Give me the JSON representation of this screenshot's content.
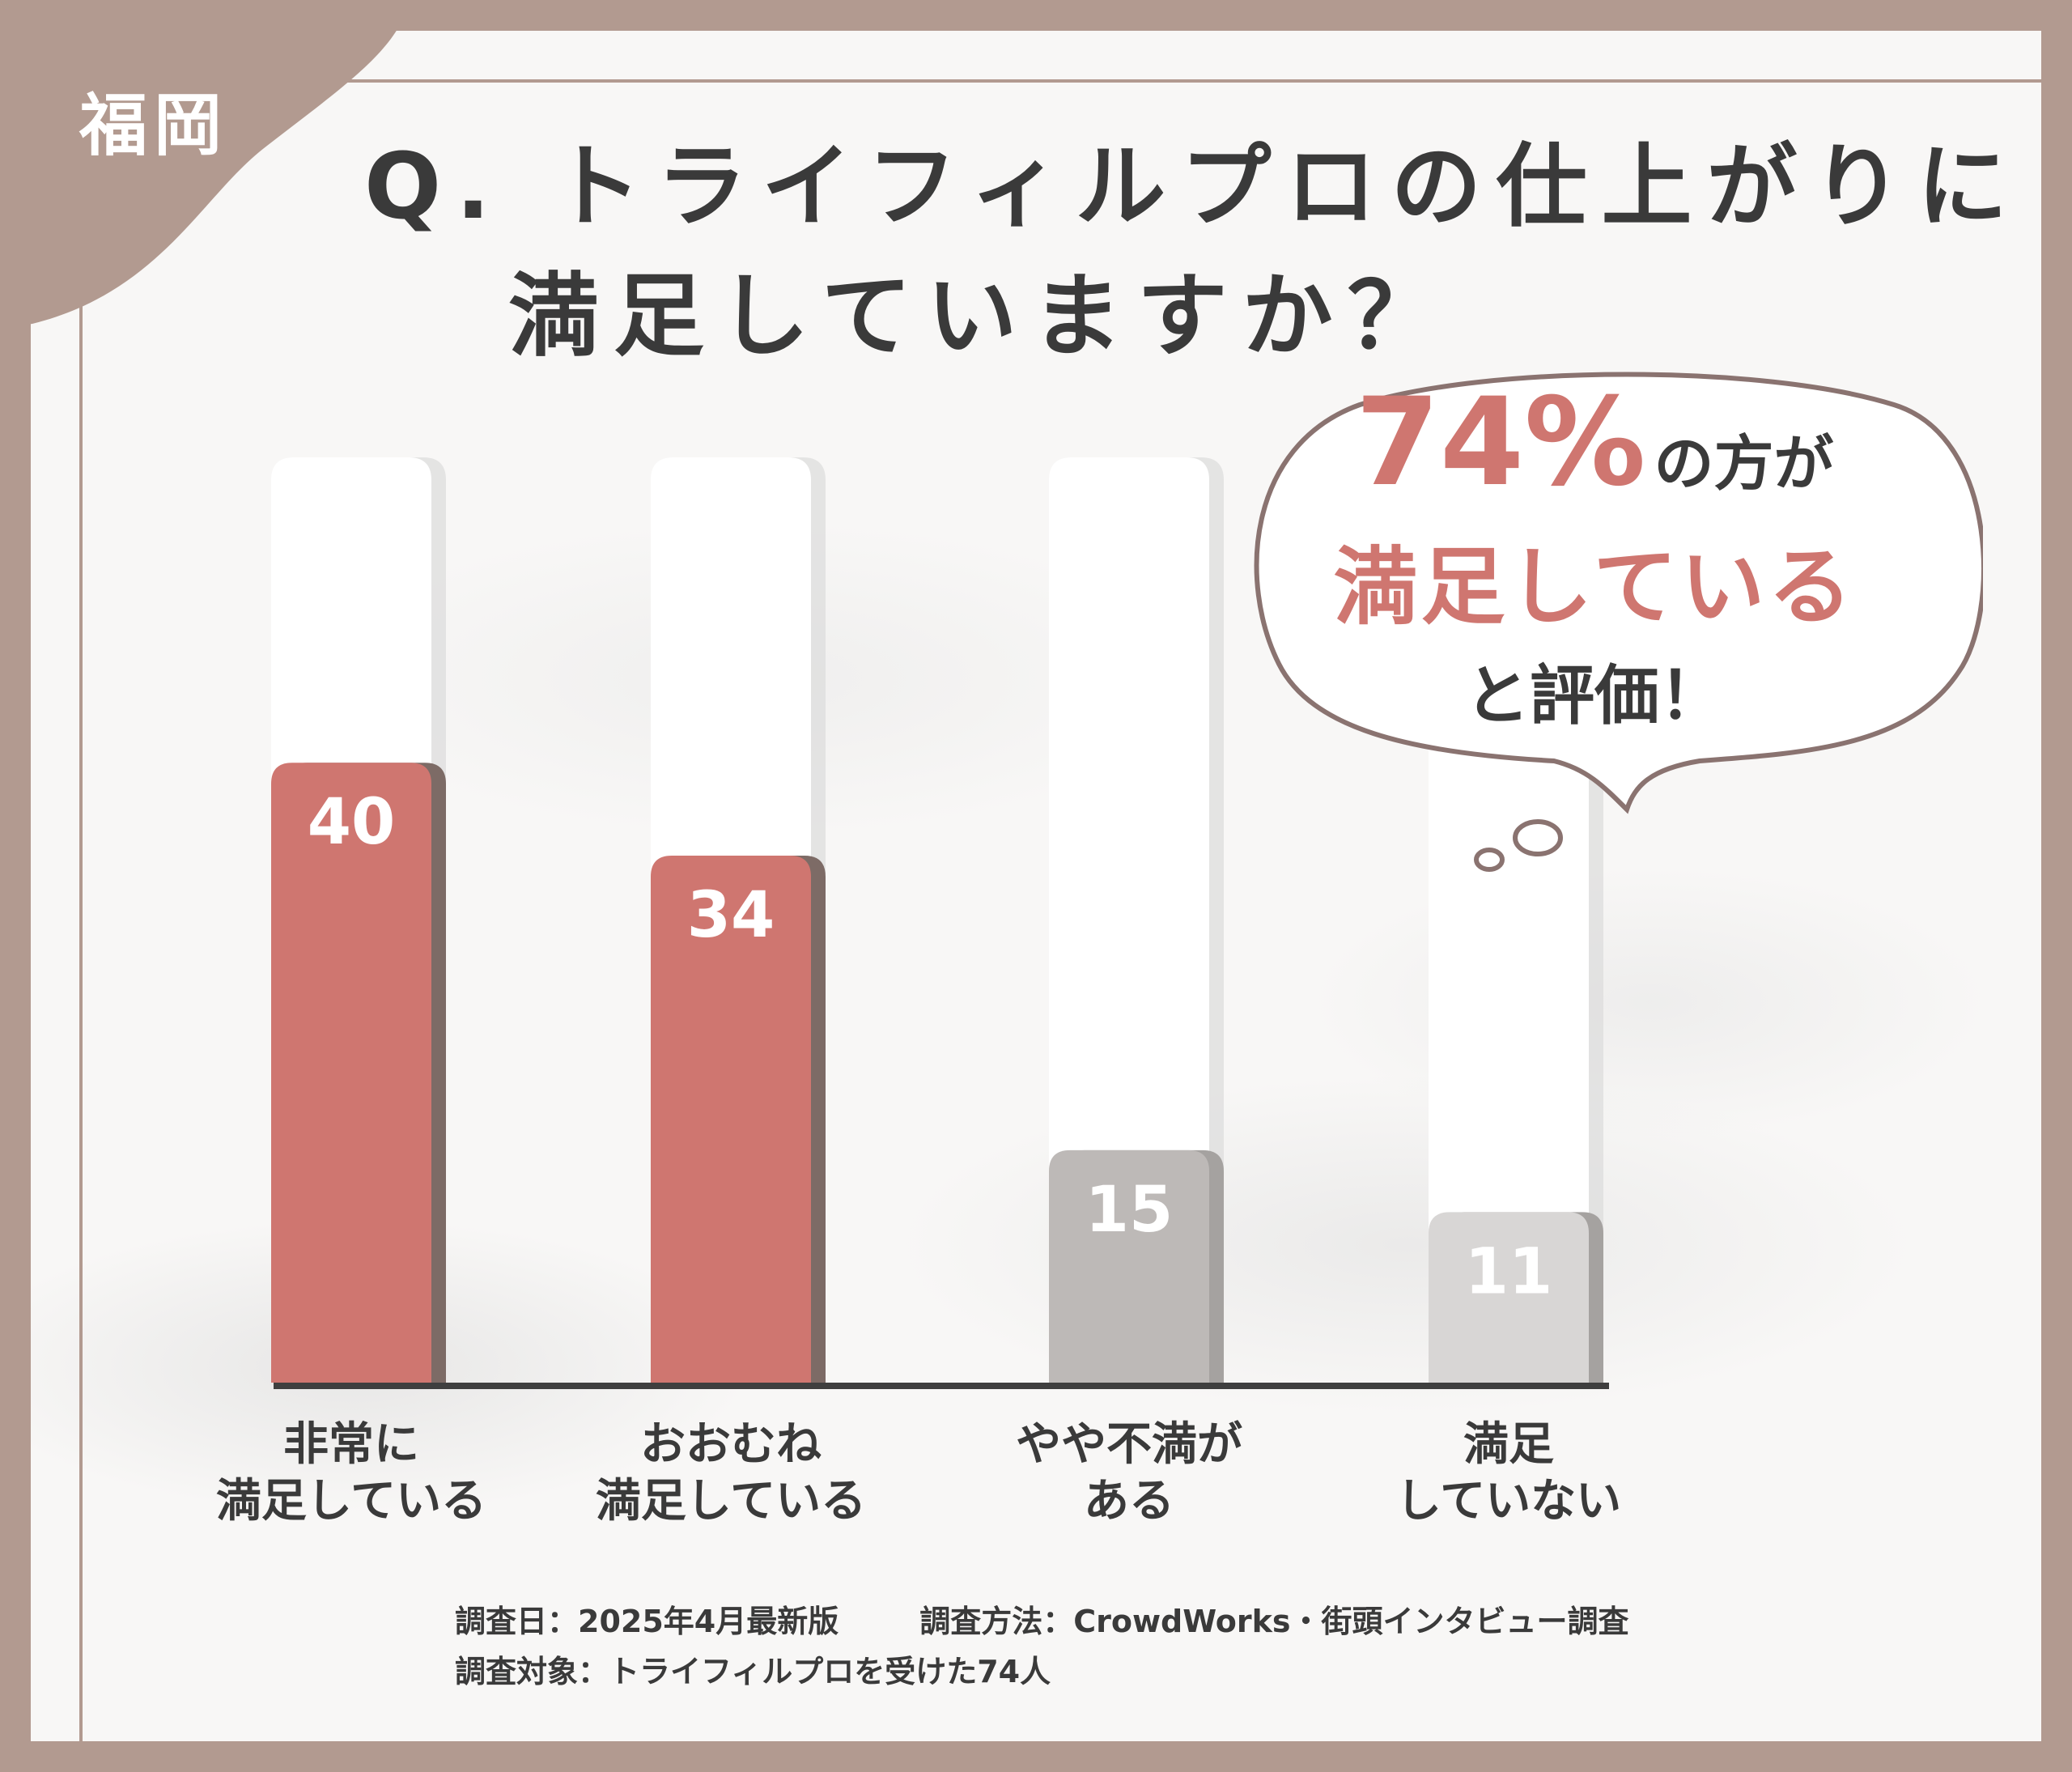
{
  "region_label": "福岡",
  "title": {
    "line1": "Q. トライフィルプロの仕上がりに",
    "line2": "満足していますか？"
  },
  "callout": {
    "percent": "74%",
    "suffix": "の方が",
    "highlight": "満足している",
    "ending": "と評価！"
  },
  "footer": {
    "date": "調査日：2025年4月最新版",
    "method": "調査方法：CrowdWorks・街頭インタビュー調査",
    "target": "調査対象：トライフィルプロを受けた74人"
  },
  "colors": {
    "frame": "#b29a90",
    "positive_bar": "#cf7670",
    "neutral_bar": "#bdb9b7",
    "negative_bar": "#d8d6d5",
    "text": "#3a3a3a"
  },
  "chart_data": {
    "type": "bar",
    "categories": [
      [
        "非常に",
        "満足している"
      ],
      [
        "おおむね",
        "満足している"
      ],
      [
        "やや不満が",
        "ある"
      ],
      [
        "満足",
        "していない"
      ]
    ],
    "values": [
      40,
      34,
      15,
      11
    ],
    "value_labels": [
      "40",
      "34",
      "15",
      "11"
    ],
    "bar_colors": [
      "#cf7670",
      "#cf7670",
      "#bdb9b7",
      "#d8d6d5"
    ],
    "ylim": [
      0,
      100
    ],
    "grid": false,
    "legend": "none"
  }
}
